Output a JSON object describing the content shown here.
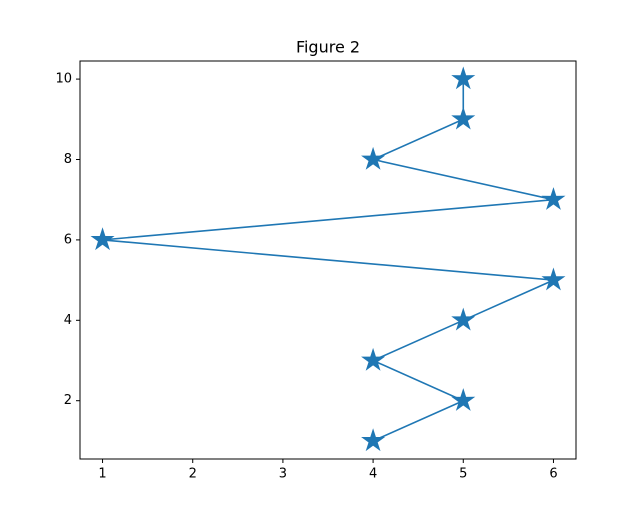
{
  "chart_data": {
    "type": "line",
    "title": "Figure 2",
    "x": [
      4,
      5,
      4,
      5,
      6,
      1,
      6,
      4,
      5,
      5
    ],
    "series": [
      {
        "color": "#1f77b4",
        "marker": "star",
        "values": [
          1,
          2,
          3,
          4,
          5,
          6,
          7,
          8,
          9,
          10
        ]
      }
    ],
    "xlim": [
      0.75,
      6.25
    ],
    "xticks": [
      1,
      2,
      3,
      4,
      5,
      6
    ],
    "ylim": [
      0.55,
      10.45
    ],
    "yticks": [
      2,
      4,
      6,
      8,
      10
    ],
    "grid": false
  }
}
